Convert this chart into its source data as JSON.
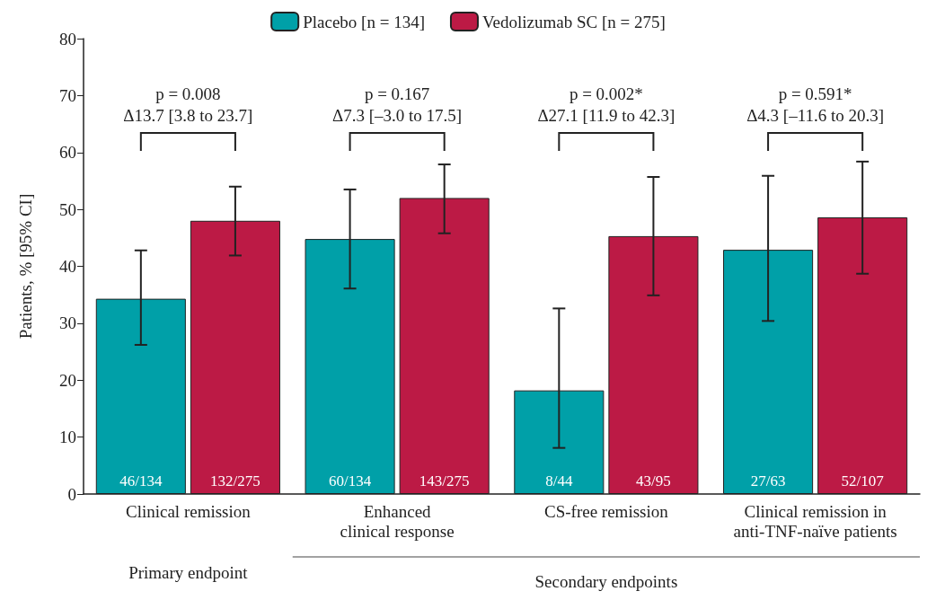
{
  "chart_data": {
    "type": "bar",
    "ylabel": "Patients, % [95% CI]",
    "categories": [
      "Clinical remission",
      "Enhanced\nclinical response",
      "CS-free remission",
      "Clinical remission in\nanti-TNF-naïve patients"
    ],
    "series": [
      {
        "name": "Placebo [n = 134]",
        "color": "#00a0a8",
        "values": [
          34.3,
          44.8,
          18.2,
          42.9
        ],
        "errors": [
          [
            26.2,
            42.8
          ],
          [
            36.1,
            53.5
          ],
          [
            8.1,
            32.6
          ],
          [
            30.4,
            55.9
          ]
        ],
        "value_labels": [
          "46/134",
          "60/134",
          "8/44",
          "27/63"
        ]
      },
      {
        "name": "Vedolizumab SC [n = 275]",
        "color": "#bc1a45",
        "values": [
          48.0,
          52.0,
          45.3,
          48.6
        ],
        "errors": [
          [
            41.9,
            54.0
          ],
          [
            45.8,
            57.9
          ],
          [
            34.9,
            55.7
          ],
          [
            38.7,
            58.4
          ]
        ],
        "value_labels": [
          "132/275",
          "143/275",
          "43/95",
          "52/107"
        ]
      }
    ],
    "ylim": [
      0,
      80
    ],
    "yticks": [
      0,
      10,
      20,
      30,
      40,
      50,
      60,
      70,
      80
    ],
    "grid": false,
    "legend": "top",
    "annotations": [
      "p = 0.008\nΔ13.7 [3.8 to 23.7]",
      "p = 0.167\nΔ7.3 [–3.0 to 17.5]",
      "p = 0.002*\nΔ27.1 [11.9 to 42.3]",
      "p = 0.591*\nΔ4.3 [–11.6 to 20.3]",
      "Primary endpoint",
      "Secondary endpoints"
    ]
  }
}
